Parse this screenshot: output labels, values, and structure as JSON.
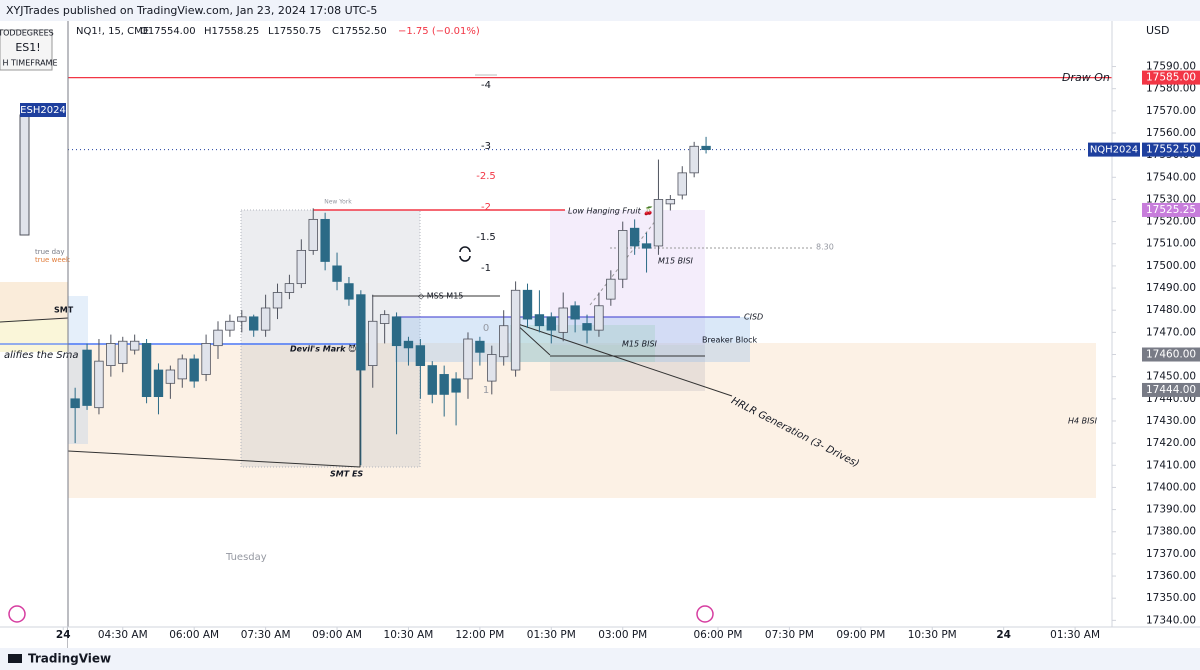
{
  "header": {
    "publisher": "XYJTrades published on TradingView.com, Jan 23, 2024 17:08 UTC-5"
  },
  "footer": {
    "brand": "TradingView"
  },
  "left_pane": {
    "lines": [
      "TODDEGREES",
      "ES1!",
      "H TIMEFRAME"
    ],
    "symbol": "ESH2024",
    "notes": [
      "true day",
      "true week",
      "SMT",
      "alifies the Sma"
    ]
  },
  "chart_data": {
    "type": "candlestick",
    "title": "NQ1!, 15, CME",
    "ohlc_text": [
      "O17554.00",
      "H17558.25",
      "L17550.75",
      "C17552.50",
      "−1.75 (−0.01%)"
    ],
    "currency": "USD",
    "up_color": "#e0e3eb",
    "down_color": "#2b6a86",
    "grid": false,
    "open": [
      17440,
      17462,
      17436,
      17455,
      17456,
      17462,
      17465,
      17453,
      17447,
      17449,
      17458,
      17451,
      17464,
      17471,
      17475,
      17477,
      17471,
      17481,
      17488,
      17492,
      17507,
      17521,
      17500,
      17492,
      17487,
      17455,
      17474,
      17477,
      17466,
      17464,
      17455,
      17451,
      17449,
      17449,
      17466,
      17448,
      17459,
      17453,
      17489,
      17478,
      17477,
      17470,
      17482,
      17474,
      17471,
      17485,
      17494,
      17517,
      17510,
      17509,
      17528,
      17532,
      17542,
      17554
    ],
    "high": [
      17445,
      17465,
      17467,
      17469,
      17468,
      17469,
      17467,
      17456,
      17455,
      17460,
      17460,
      17469,
      17475,
      17478,
      17480,
      17478,
      17487,
      17492,
      17496,
      17512,
      17526,
      17524,
      17506,
      17495,
      17489,
      17487,
      17480,
      17479,
      17468,
      17467,
      17457,
      17455,
      17452,
      17470,
      17468,
      17464,
      17480,
      17493,
      17492,
      17489,
      17479,
      17488,
      17484,
      17478,
      17488,
      17498,
      17520,
      17521,
      17515,
      17548,
      17532,
      17545,
      17556,
      17558.25
    ],
    "low": [
      17420,
      17435,
      17433,
      17450,
      17452,
      17460,
      17438,
      17433,
      17440,
      17445,
      17445,
      17448,
      17458,
      17468,
      17470,
      17468,
      17468,
      17476,
      17485,
      17490,
      17505,
      17498,
      17489,
      17482,
      17410,
      17445,
      17465,
      17424,
      17455,
      17440,
      17438,
      17432,
      17428,
      17440,
      17455,
      17442,
      17455,
      17450,
      17472,
      17470,
      17465,
      17466,
      17470,
      17465,
      17468,
      17482,
      17490,
      17505,
      17497,
      17505,
      17525,
      17530,
      17540,
      17550.75
    ],
    "close": [
      17436,
      17437,
      17457,
      17465,
      17466,
      17466,
      17441,
      17441,
      17453,
      17458,
      17448,
      17465,
      17471,
      17475,
      17477,
      17471,
      17481,
      17488,
      17492,
      17507,
      17521,
      17502,
      17493,
      17485,
      17453,
      17475,
      17478,
      17464,
      17463,
      17455,
      17442,
      17442,
      17443,
      17467,
      17461,
      17460,
      17473,
      17489,
      17476,
      17473,
      17471,
      17481,
      17476,
      17471,
      17482,
      17494,
      17516,
      17509,
      17508,
      17530,
      17530,
      17542,
      17554,
      17552.5
    ],
    "xlim": [
      -0.6,
      87.1
    ],
    "xticks": [
      {
        "value": -1,
        "label": "24"
      },
      {
        "value": 4,
        "label": "04:30 AM"
      },
      {
        "value": 10,
        "label": "06:00 AM"
      },
      {
        "value": 16,
        "label": "07:30 AM"
      },
      {
        "value": 22,
        "label": "09:00 AM"
      },
      {
        "value": 28,
        "label": "10:30 AM"
      },
      {
        "value": 34,
        "label": "12:00 PM"
      },
      {
        "value": 40,
        "label": "01:30 PM"
      },
      {
        "value": 46,
        "label": "03:00 PM"
      },
      {
        "value": 54,
        "label": "06:00 PM"
      },
      {
        "value": 60,
        "label": "07:30 PM"
      },
      {
        "value": 66,
        "label": "09:00 PM"
      },
      {
        "value": 72,
        "label": "10:30 PM"
      },
      {
        "value": 78,
        "label": "24"
      },
      {
        "value": 84,
        "label": "01:30 AM"
      }
    ],
    "ylim": [
      17337,
      17611
    ],
    "yticks": [
      {
        "value": 17340,
        "label": "17340.00"
      },
      {
        "value": 17350,
        "label": "17350.00"
      },
      {
        "value": 17360,
        "label": "17360.00"
      },
      {
        "value": 17370,
        "label": "17370.00"
      },
      {
        "value": 17380,
        "label": "17380.00"
      },
      {
        "value": 17390,
        "label": "17390.00"
      },
      {
        "value": 17400,
        "label": "17400.00"
      },
      {
        "value": 17410,
        "label": "17410.00"
      },
      {
        "value": 17420,
        "label": "17420.00"
      },
      {
        "value": 17430,
        "label": "17430.00"
      },
      {
        "value": 17440,
        "label": "17440.00"
      },
      {
        "value": 17450,
        "label": "17450.00"
      },
      {
        "value": 17460,
        "label": "17460.00"
      },
      {
        "value": 17470,
        "label": "17470.00"
      },
      {
        "value": 17480,
        "label": "17480.00"
      },
      {
        "value": 17490,
        "label": "17490.00"
      },
      {
        "value": 17500,
        "label": "17500.00"
      },
      {
        "value": 17510,
        "label": "17510.00"
      },
      {
        "value": 17520,
        "label": "17520.00"
      },
      {
        "value": 17530,
        "label": "17530.00"
      },
      {
        "value": 17540,
        "label": "17540.00"
      },
      {
        "value": 17550,
        "label": "17550.00"
      },
      {
        "value": 17560,
        "label": "17560.00"
      },
      {
        "value": 17570,
        "label": "17570.00"
      },
      {
        "value": 17580,
        "label": "17580.00"
      },
      {
        "value": 17590,
        "label": "17590.00"
      }
    ],
    "levels": [
      {
        "value": 17585,
        "label": "17585.00",
        "color": "#f23645"
      },
      {
        "value": 17552.5,
        "label": "17552.50",
        "symbol": "NQH2024",
        "color": "#1e3f9e"
      },
      {
        "value": 17525.25,
        "label": "17525.25",
        "color": "#c77ddb"
      },
      {
        "value": 17460,
        "label": "17460.00",
        "color": "#787b86"
      },
      {
        "value": 17444,
        "label": "17444.00",
        "color": "#787b86"
      }
    ],
    "annotations": [
      "Draw On Liquidity",
      "-4",
      "-3",
      "-2.5",
      "-2",
      "-1.5",
      "-1",
      "0",
      "1",
      "Low Hanging Fruit 🍒",
      "New York",
      "8.30",
      "M15 BISI",
      "◇ MSS M15",
      "CISD",
      "Devil's Mark 😈",
      "M15 BISI",
      "Breaker Block",
      "HRLR Generation (3- Drives)",
      "H4 BISI",
      "SMT ES",
      "Tuesday"
    ]
  }
}
